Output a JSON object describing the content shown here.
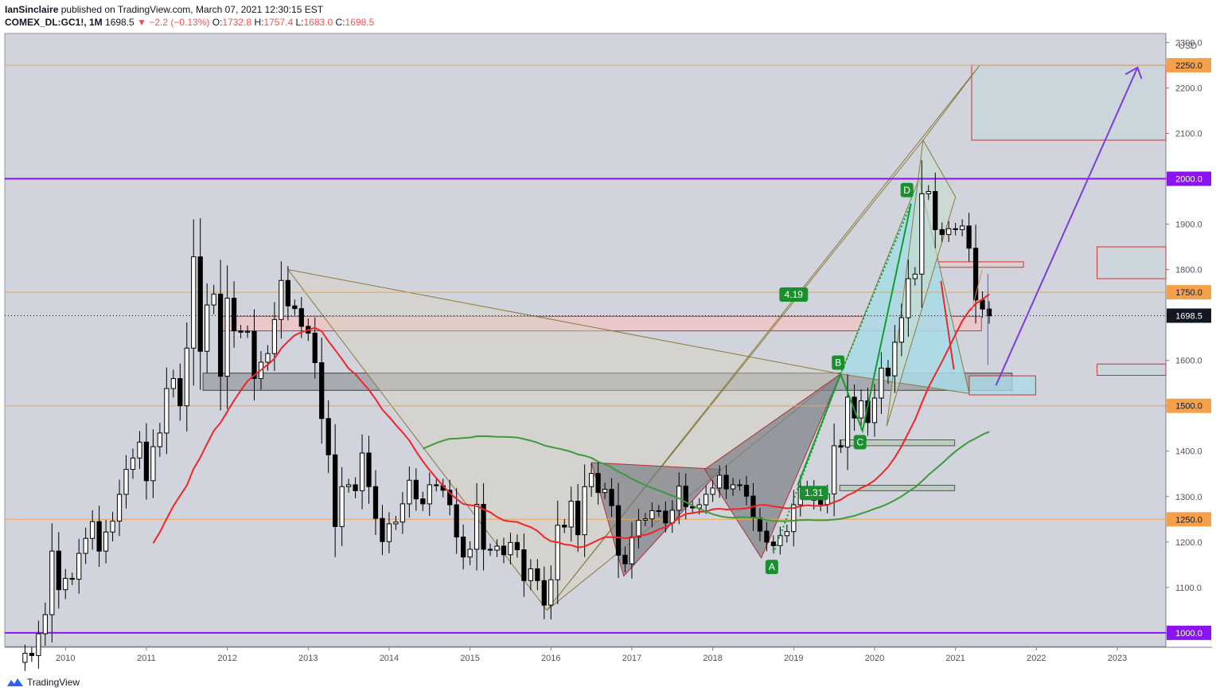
{
  "header": {
    "author": "IanSinclaire",
    "published_text": "published on TradingView.com, March 07, 2021 12:30:15 EST"
  },
  "ticker": {
    "symbol": "COMEX_DL:GC1!, 1M",
    "last": "1698.5",
    "change": "−2.2 (−0.13%)",
    "open_label": "O:",
    "open": "1732.8",
    "high_label": "H:",
    "high": "1757.4",
    "low_label": "L:",
    "low": "1683.0",
    "close_label": "C:",
    "close": "1698.5"
  },
  "footer": {
    "brand": "TradingView"
  },
  "colors": {
    "background": "#d1d4dc",
    "up_candle": "#ffffff",
    "down_candle": "#000000",
    "ma_fast": "#f22424",
    "ma_slow": "#3c9b3c",
    "purple_line": "#8b13f0",
    "orange_line": "#f5a04a",
    "harmonic_green": "#0e9f2c",
    "cyan_fill": "#a8dbe8"
  },
  "chart_data": {
    "type": "candlestick",
    "title": "",
    "currency": "USD",
    "x_ticks": [
      "2010",
      "2011",
      "2012",
      "2013",
      "2014",
      "2015",
      "2016",
      "2017",
      "2018",
      "2019",
      "2020",
      "2021",
      "2022",
      "2023"
    ],
    "y_ticks": [
      "1000.0",
      "1100.0",
      "1200.0",
      "1300.0",
      "1400.0",
      "1500.0",
      "1600.0",
      "1700.0",
      "1800.0",
      "1900.0",
      "2000.0",
      "2100.0",
      "2200.0",
      "2300.0"
    ],
    "ylim": [
      970,
      2320
    ],
    "xlim": [
      2009.25,
      2023.6
    ],
    "start_date": "2009-07",
    "closes": [
      955,
      950,
      998,
      1040,
      1180,
      1095,
      1120,
      1118,
      1175,
      1208,
      1245,
      1180,
      1222,
      1246,
      1305,
      1360,
      1385,
      1420,
      1335,
      1410,
      1440,
      1538,
      1560,
      1500,
      1627,
      1828,
      1620,
      1722,
      1746,
      1565,
      1737,
      1665,
      1662,
      1664,
      1560,
      1596,
      1615,
      1690,
      1776,
      1720,
      1714,
      1675,
      1660,
      1595,
      1472,
      1392,
      1234,
      1322,
      1326,
      1313,
      1396,
      1322,
      1252,
      1201,
      1240,
      1244,
      1284,
      1336,
      1295,
      1284,
      1326,
      1324,
      1314,
      1282,
      1211,
      1167,
      1184,
      1283,
      1184,
      1182,
      1191,
      1172,
      1199,
      1183,
      1115,
      1141,
      1115,
      1061,
      1117,
      1237,
      1233,
      1290,
      1216,
      1322,
      1351,
      1309,
      1316,
      1280,
      1171,
      1152,
      1211,
      1248,
      1251,
      1269,
      1268,
      1242,
      1270,
      1323,
      1278,
      1275,
      1282,
      1305,
      1319,
      1347,
      1317,
      1326,
      1325,
      1301,
      1253,
      1224,
      1200,
      1192,
      1214,
      1223,
      1282,
      1321,
      1316,
      1292,
      1283,
      1306,
      1412,
      1409,
      1519,
      1473,
      1511,
      1463,
      1517,
      1583,
      1566,
      1640,
      1694,
      1780,
      1790,
      1967,
      1972,
      1888,
      1877,
      1890,
      1888,
      1896,
      1847,
      1733,
      1713,
      1698
    ],
    "key_levels": [
      {
        "price": 2250.0,
        "label": "2250.0",
        "color": "#f5a04a"
      },
      {
        "price": 2000.0,
        "label": "2000.0",
        "color": "#8b13f0"
      },
      {
        "price": 1750.0,
        "label": "1750.0",
        "color": "#f5a04a"
      },
      {
        "price": 1500.0,
        "label": "1500.0",
        "color": "#f5a04a"
      },
      {
        "price": 1250.0,
        "label": "1250.0",
        "color": "#f5a04a"
      },
      {
        "price": 1000.0,
        "label": "1000.0",
        "color": "#8b13f0"
      }
    ],
    "current_price": "1698.5",
    "harmonic_labels": [
      "A",
      "B",
      "C",
      "D"
    ],
    "ratio_labels": [
      "4.19",
      "1.31"
    ]
  }
}
